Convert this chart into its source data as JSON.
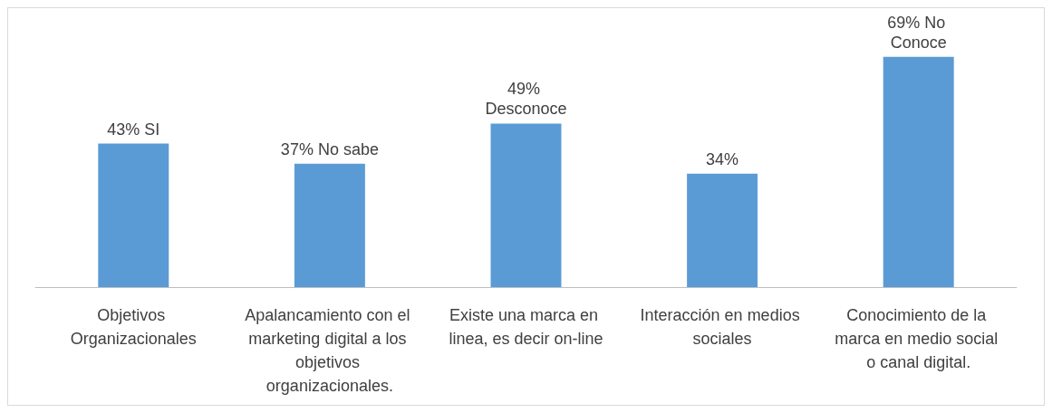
{
  "chart_data": {
    "type": "bar",
    "categories": [
      "Objetivos Organizacionales",
      "Apalancamiento con el marketing digital a los objetivos organizacionales.",
      "Existe una marca en linea, es decir on-line",
      "Interacción en medios sociales",
      "Conocimiento de la marca en medio social o canal digital."
    ],
    "values": [
      43,
      37,
      49,
      34,
      69
    ],
    "value_labels": [
      "43% SI",
      "37% No sabe",
      "49% Desconoce",
      "34%",
      "69% No Conoce"
    ],
    "color": "#5b9bd5"
  }
}
